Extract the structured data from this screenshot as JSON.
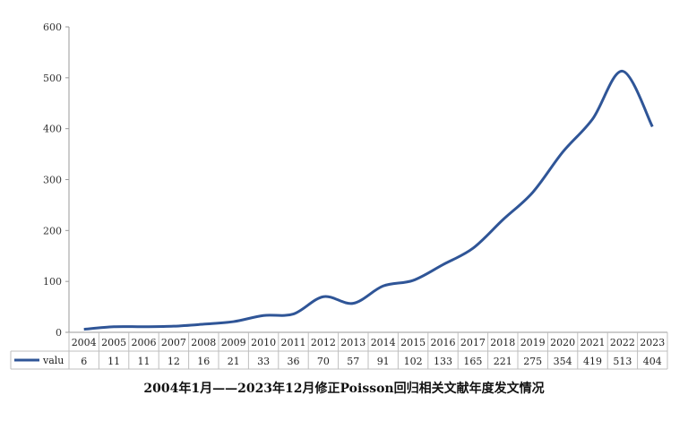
{
  "chart_data": {
    "type": "line",
    "title": "2004年1月——2023年12月修正Poisson回归相关文献年度发文情况",
    "categories": [
      "2004",
      "2005",
      "2006",
      "2007",
      "2008",
      "2009",
      "2010",
      "2011",
      "2012",
      "2013",
      "2014",
      "2015",
      "2016",
      "2017",
      "2018",
      "2019",
      "2020",
      "2021",
      "2022",
      "2023"
    ],
    "series": [
      {
        "name": "valu",
        "color": "#2f5597",
        "values": [
          6,
          11,
          11,
          12,
          16,
          21,
          33,
          36,
          70,
          57,
          91,
          102,
          133,
          165,
          221,
          275,
          354,
          419,
          513,
          404
        ]
      }
    ],
    "yticks": [
      "0",
      "100",
      "200",
      "300",
      "400",
      "500",
      "600"
    ],
    "ylim": [
      0,
      600
    ],
    "grid": false,
    "legend": "data-table-left"
  }
}
